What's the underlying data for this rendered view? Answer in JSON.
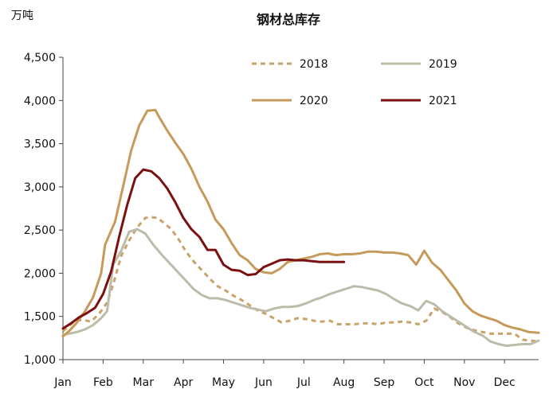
{
  "chart_data": {
    "type": "line",
    "title": "钢材总库存",
    "unit_label": "万吨",
    "xlabel": "",
    "ylabel": "",
    "ylim": [
      1000,
      4500
    ],
    "yticks": [
      1000,
      1500,
      2000,
      2500,
      3000,
      3500,
      4000,
      4500
    ],
    "ytick_labels": [
      "1,000",
      "1,500",
      "2,000",
      "2,500",
      "3,000",
      "3,500",
      "4,000",
      "4,500"
    ],
    "xlim": [
      1,
      12.85
    ],
    "month_labels": [
      "Jan",
      "Feb",
      "Mar",
      "Apr",
      "May",
      "Jun",
      "Jul",
      "Aug",
      "Sep",
      "Oct",
      "Nov",
      "Dec"
    ],
    "grid": false,
    "legend": "top-right",
    "series": [
      {
        "name": "2018",
        "color": "#c8a46a",
        "dash": true,
        "x": [
          1,
          1.13,
          1.3,
          1.5,
          1.7,
          1.9,
          2.1,
          2.25,
          2.45,
          2.65,
          2.85,
          3.05,
          3.2,
          3.35,
          3.5,
          3.7,
          3.9,
          4.05,
          4.25,
          4.45,
          4.65,
          4.85,
          5.05,
          5.25,
          5.45,
          5.65,
          5.85,
          6.05,
          6.25,
          6.45,
          6.65,
          6.85,
          7.05,
          7.25,
          7.45,
          7.65,
          7.85,
          8.05,
          8.25,
          8.45,
          8.65,
          8.85,
          9.05,
          9.25,
          9.45,
          9.65,
          9.85,
          10.05,
          10.25,
          10.45,
          10.65,
          10.85,
          11.05,
          11.25,
          11.45,
          11.65,
          11.85,
          12.05,
          12.25,
          12.45,
          12.65,
          12.85
        ],
        "values": [
          1330,
          1380,
          1450,
          1460,
          1440,
          1530,
          1660,
          1870,
          2200,
          2380,
          2530,
          2640,
          2650,
          2640,
          2590,
          2510,
          2380,
          2260,
          2140,
          2040,
          1940,
          1850,
          1800,
          1740,
          1690,
          1630,
          1570,
          1530,
          1480,
          1430,
          1450,
          1480,
          1470,
          1450,
          1440,
          1450,
          1410,
          1410,
          1410,
          1420,
          1420,
          1410,
          1430,
          1430,
          1440,
          1430,
          1410,
          1450,
          1590,
          1550,
          1490,
          1420,
          1370,
          1340,
          1320,
          1300,
          1300,
          1300,
          1300,
          1230,
          1220,
          1210
        ]
      },
      {
        "name": "2019",
        "color": "#bdbcaa",
        "dash": false,
        "x": [
          1,
          1.15,
          1.35,
          1.55,
          1.75,
          1.95,
          2.1,
          2.25,
          2.45,
          2.65,
          2.85,
          3.05,
          3.25,
          3.45,
          3.65,
          3.85,
          4.05,
          4.25,
          4.45,
          4.65,
          4.85,
          5.05,
          5.25,
          5.45,
          5.65,
          5.85,
          6.05,
          6.25,
          6.45,
          6.65,
          6.85,
          7.05,
          7.25,
          7.45,
          7.65,
          7.85,
          8.05,
          8.25,
          8.45,
          8.65,
          8.85,
          9.05,
          9.25,
          9.45,
          9.65,
          9.85,
          10.05,
          10.25,
          10.45,
          10.65,
          10.85,
          11.05,
          11.25,
          11.45,
          11.65,
          11.85,
          12.05,
          12.25,
          12.45,
          12.65,
          12.85
        ],
        "values": [
          1290,
          1300,
          1320,
          1350,
          1400,
          1480,
          1560,
          2100,
          2260,
          2480,
          2510,
          2460,
          2330,
          2220,
          2120,
          2020,
          1920,
          1820,
          1750,
          1710,
          1710,
          1690,
          1660,
          1630,
          1600,
          1580,
          1560,
          1590,
          1610,
          1610,
          1620,
          1650,
          1690,
          1720,
          1760,
          1790,
          1820,
          1850,
          1840,
          1820,
          1800,
          1760,
          1700,
          1650,
          1620,
          1570,
          1680,
          1640,
          1560,
          1500,
          1440,
          1380,
          1320,
          1280,
          1210,
          1180,
          1160,
          1170,
          1180,
          1180,
          1220
        ]
      },
      {
        "name": "2020",
        "color": "#c69a5a",
        "dash": false,
        "x": [
          1,
          1.15,
          1.35,
          1.55,
          1.75,
          1.95,
          2.05,
          2.3,
          2.5,
          2.7,
          2.9,
          3.1,
          3.3,
          3.42,
          3.6,
          3.8,
          4.0,
          4.2,
          4.4,
          4.6,
          4.8,
          5.0,
          5.2,
          5.4,
          5.6,
          5.8,
          6.0,
          6.2,
          6.4,
          6.6,
          6.8,
          7.0,
          7.2,
          7.4,
          7.6,
          7.8,
          8.0,
          8.2,
          8.4,
          8.6,
          8.8,
          9.0,
          9.2,
          9.4,
          9.6,
          9.8,
          10.0,
          10.2,
          10.4,
          10.6,
          10.8,
          11.0,
          11.2,
          11.4,
          11.6,
          11.8,
          12.0,
          12.2,
          12.4,
          12.6,
          12.85
        ],
        "values": [
          1270,
          1330,
          1430,
          1560,
          1720,
          2000,
          2330,
          2600,
          3010,
          3420,
          3710,
          3880,
          3890,
          3790,
          3650,
          3510,
          3380,
          3210,
          3000,
          2830,
          2620,
          2510,
          2350,
          2210,
          2150,
          2050,
          2010,
          2000,
          2050,
          2130,
          2150,
          2170,
          2190,
          2220,
          2230,
          2210,
          2220,
          2220,
          2230,
          2250,
          2250,
          2240,
          2240,
          2230,
          2210,
          2100,
          2260,
          2120,
          2040,
          1920,
          1800,
          1650,
          1560,
          1510,
          1480,
          1450,
          1400,
          1370,
          1350,
          1320,
          1310
        ]
      },
      {
        "name": "2021",
        "color": "#7a1010",
        "dash": false,
        "x": [
          1,
          1.2,
          1.4,
          1.6,
          1.8,
          2.0,
          2.2,
          2.4,
          2.6,
          2.8,
          3.0,
          3.2,
          3.4,
          3.6,
          3.8,
          4.0,
          4.2,
          4.4,
          4.6,
          4.8,
          5.0,
          5.2,
          5.4,
          5.6,
          5.8,
          6.0,
          6.2,
          6.4,
          6.6,
          6.8,
          7.0,
          7.2,
          7.4,
          7.6,
          7.8,
          8.0
        ],
        "values": [
          1360,
          1420,
          1490,
          1540,
          1600,
          1760,
          2020,
          2420,
          2790,
          3100,
          3200,
          3180,
          3100,
          2980,
          2820,
          2640,
          2510,
          2420,
          2270,
          2270,
          2100,
          2040,
          2030,
          1980,
          1990,
          2070,
          2110,
          2150,
          2160,
          2150,
          2150,
          2140,
          2130,
          2130,
          2130,
          2130
        ]
      }
    ]
  }
}
